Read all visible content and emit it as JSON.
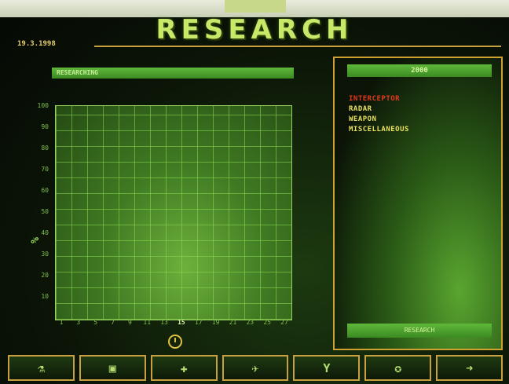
{
  "header": {
    "title": "RESEARCH",
    "date": "19.3.1998"
  },
  "left_panel": {
    "header_label": "RESEARCHING",
    "y_axis_label": "%",
    "y_ticks": [
      "100",
      "90",
      "80",
      "70",
      "60",
      "50",
      "40",
      "30",
      "20",
      "10"
    ],
    "x_ticks": [
      "1",
      "3",
      "5",
      "7",
      "9",
      "11",
      "13",
      "15",
      "17",
      "19",
      "21",
      "23",
      "25",
      "27"
    ],
    "x_highlight": "15"
  },
  "right_panel": {
    "header_label": "2000",
    "options": [
      {
        "label": "INTERCEPTOR",
        "selected": true
      },
      {
        "label": "RADAR",
        "selected": false
      },
      {
        "label": "WEAPON",
        "selected": false
      },
      {
        "label": "MISCELLANEOUS",
        "selected": false
      }
    ],
    "footer_label": "RESEARCH"
  },
  "toolbar": {
    "buttons": [
      {
        "name": "research-button",
        "glyph": "⚗"
      },
      {
        "name": "production-button",
        "glyph": "▣"
      },
      {
        "name": "bases-button",
        "glyph": "✚"
      },
      {
        "name": "craft-button",
        "glyph": "✈"
      },
      {
        "name": "personnel-button",
        "glyph": "Y"
      },
      {
        "name": "globe-button",
        "glyph": "✪"
      },
      {
        "name": "exit-button",
        "glyph": "➜"
      }
    ]
  },
  "colors": {
    "accent_gold": "#c8a040",
    "panel_green": "#5fb83a",
    "selected_red": "#e23a1a",
    "text_yellow": "#e8e060"
  }
}
